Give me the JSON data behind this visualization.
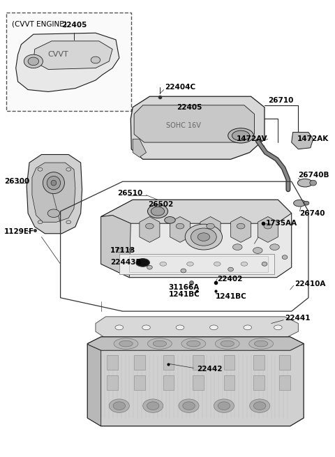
{
  "bg_color": "#ffffff",
  "line_color": "#1a1a1a",
  "fig_width": 4.8,
  "fig_height": 6.55,
  "dpi": 100,
  "labels": {
    "cvvt_header": "(CVVT ENGINE)",
    "p22405_inset": "22405",
    "p22404C": "22404C",
    "p22405": "22405",
    "p26710": "26710",
    "p1472AV": "1472AV",
    "p1472AK": "1472AK",
    "p26740B": "26740B",
    "p26740": "26740",
    "p26300": "26300",
    "p26510": "26510",
    "p26502": "26502",
    "p1735AA": "1735AA",
    "p1129EF": "1129EF",
    "p17113": "17113",
    "p22443B": "22443B",
    "p22410A": "22410A",
    "p22402": "22402",
    "p31166A": "31166A",
    "p1241BC_L": "1241BC",
    "p1241BC_R": "1241BC",
    "p22441": "22441",
    "p22442": "22442"
  }
}
